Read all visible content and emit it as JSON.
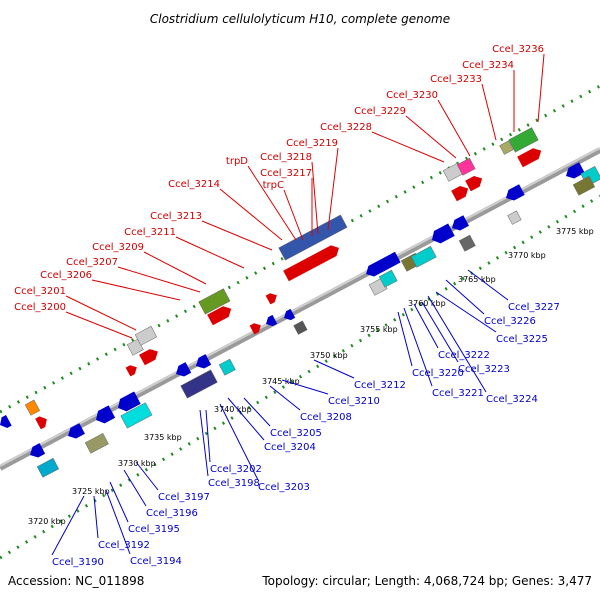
{
  "title": "Clostridium cellulolyticum H10, complete genome",
  "footer": {
    "accession": "Accession: NC_011898",
    "summary": "Topology: circular; Length: 4,068,724 bp; Genes: 3,477"
  },
  "colors": {
    "forward_label": "#cc0000",
    "reverse_label": "#0000cc",
    "backbone": "#999999",
    "dotted_track": "#228B22"
  },
  "ticks": [
    "3720 kbp",
    "3725 kbp",
    "3730 kbp",
    "3735 kbp",
    "3740 kbp",
    "3745 kbp",
    "3750 kbp",
    "3755 kbp",
    "3760 kbp",
    "3765 kbp",
    "3770 kbp",
    "3775 kbp"
  ],
  "forward_labels": [
    "Ccel_3200",
    "Ccel_3201",
    "Ccel_3206",
    "Ccel_3207",
    "Ccel_3209",
    "Ccel_3211",
    "Ccel_3213",
    "Ccel_3214",
    "trpD",
    "trpC",
    "Ccel_3217",
    "Ccel_3218",
    "Ccel_3219",
    "Ccel_3228",
    "Ccel_3229",
    "Ccel_3230",
    "Ccel_3233",
    "Ccel_3234",
    "Ccel_3236"
  ],
  "reverse_labels": [
    "Ccel_3190",
    "Ccel_3192",
    "Ccel_3194",
    "Ccel_3195",
    "Ccel_3196",
    "Ccel_3197",
    "Ccel_3198",
    "Ccel_3202",
    "Ccel_3203",
    "Ccel_3204",
    "Ccel_3205",
    "Ccel_3208",
    "Ccel_3210",
    "Ccel_3212",
    "Ccel_3220",
    "Ccel_3221",
    "Ccel_3222",
    "Ccel_3223",
    "Ccel_3224",
    "Ccel_3225",
    "Ccel_3226",
    "Ccel_3227"
  ]
}
